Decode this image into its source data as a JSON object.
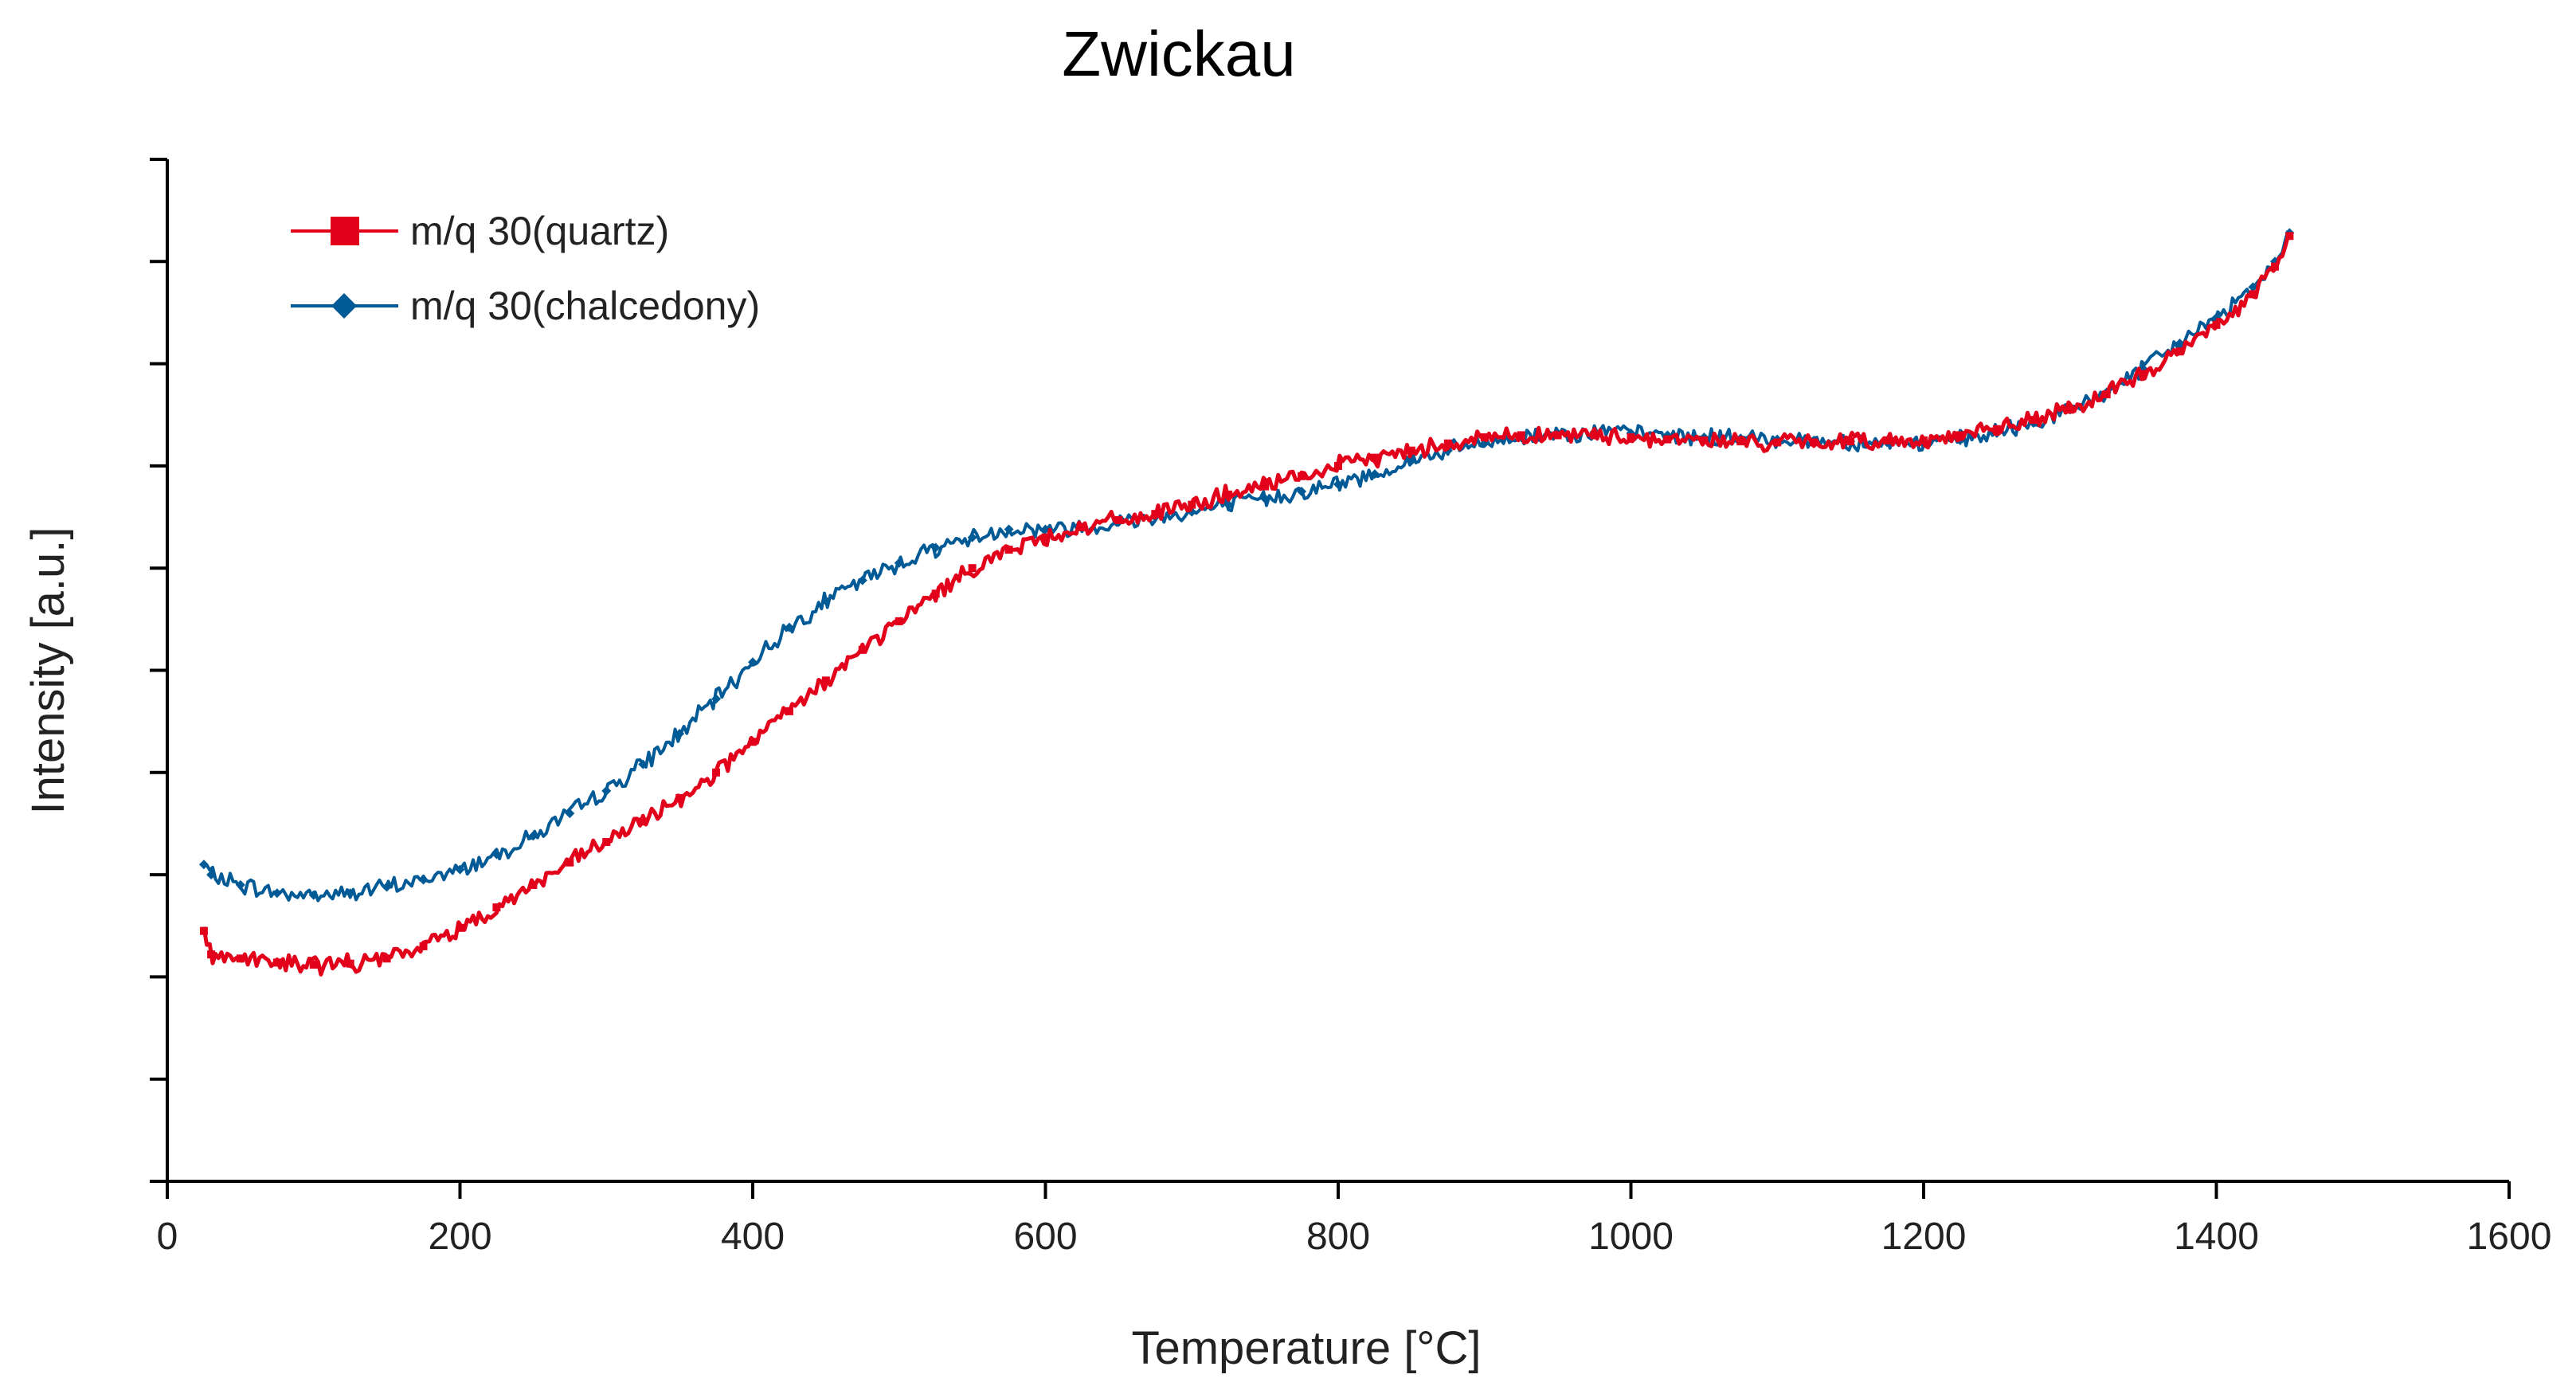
{
  "chart_data": {
    "type": "line",
    "title": "Zwickau",
    "xlabel": "Temperature [°C]",
    "ylabel": "Intensity [a.u.]",
    "xlim": [
      0,
      1600
    ],
    "ylim": [
      0,
      10
    ],
    "x_ticks": [
      0,
      200,
      400,
      600,
      800,
      1000,
      1200,
      1400,
      1600
    ],
    "y_tick_count": 10,
    "y_tick_labels_shown": false,
    "grid": false,
    "legend_position": "top-left",
    "series": [
      {
        "name": "m/q 30(quartz)",
        "color": "#e2001a",
        "marker": "square",
        "x": [
          25,
          30,
          50,
          75,
          100,
          125,
          150,
          175,
          200,
          225,
          250,
          275,
          300,
          325,
          350,
          375,
          400,
          425,
          450,
          475,
          500,
          525,
          550,
          575,
          600,
          625,
          650,
          675,
          700,
          725,
          750,
          775,
          800,
          825,
          850,
          875,
          900,
          925,
          950,
          975,
          1000,
          1025,
          1050,
          1075,
          1100,
          1125,
          1150,
          1175,
          1200,
          1225,
          1250,
          1275,
          1300,
          1325,
          1350,
          1375,
          1400,
          1425,
          1440,
          1450
        ],
        "y": [
          2.45,
          2.22,
          2.18,
          2.14,
          2.12,
          2.13,
          2.18,
          2.3,
          2.48,
          2.68,
          2.9,
          3.12,
          3.32,
          3.52,
          3.75,
          4.0,
          4.3,
          4.6,
          4.9,
          5.2,
          5.48,
          5.75,
          6.0,
          6.18,
          6.3,
          6.4,
          6.47,
          6.53,
          6.62,
          6.72,
          6.8,
          6.9,
          7.0,
          7.08,
          7.15,
          7.22,
          7.28,
          7.3,
          7.3,
          7.3,
          7.28,
          7.26,
          7.25,
          7.24,
          7.23,
          7.23,
          7.24,
          7.25,
          7.25,
          7.3,
          7.36,
          7.45,
          7.55,
          7.7,
          7.9,
          8.12,
          8.38,
          8.68,
          8.95,
          9.25
        ]
      },
      {
        "name": "m/q 30(chalcedony)",
        "color": "#005a96",
        "marker": "diamond",
        "x": [
          25,
          30,
          50,
          75,
          100,
          125,
          150,
          175,
          200,
          225,
          250,
          275,
          300,
          325,
          350,
          375,
          400,
          425,
          450,
          475,
          500,
          525,
          550,
          575,
          600,
          625,
          650,
          675,
          700,
          725,
          750,
          775,
          800,
          825,
          850,
          875,
          900,
          925,
          950,
          975,
          1000,
          1025,
          1050,
          1075,
          1100,
          1125,
          1150,
          1175,
          1200,
          1225,
          1250,
          1275,
          1300,
          1325,
          1350,
          1375,
          1400,
          1425,
          1440,
          1450
        ],
        "y": [
          3.1,
          3.0,
          2.9,
          2.82,
          2.8,
          2.82,
          2.88,
          2.95,
          3.05,
          3.2,
          3.38,
          3.6,
          3.82,
          4.08,
          4.38,
          4.72,
          5.08,
          5.42,
          5.68,
          5.88,
          6.05,
          6.2,
          6.3,
          6.38,
          6.38,
          6.4,
          6.45,
          6.5,
          6.55,
          6.62,
          6.68,
          6.75,
          6.82,
          6.92,
          7.05,
          7.15,
          7.22,
          7.28,
          7.32,
          7.33,
          7.32,
          7.3,
          7.28,
          7.27,
          7.26,
          7.25,
          7.24,
          7.23,
          7.22,
          7.25,
          7.32,
          7.42,
          7.55,
          7.72,
          7.95,
          8.2,
          8.45,
          8.75,
          9.0,
          9.28
        ]
      }
    ]
  }
}
